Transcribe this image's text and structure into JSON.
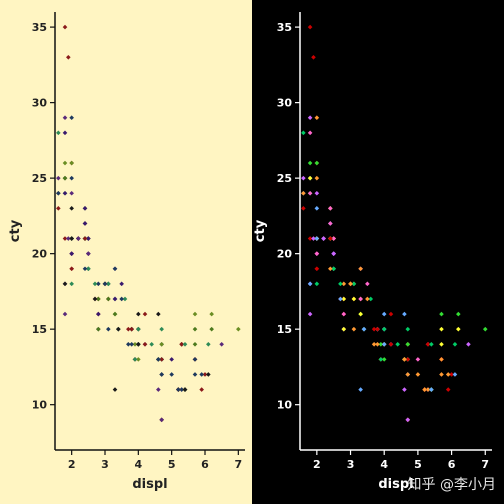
{
  "chart_data": [
    {
      "type": "scatter",
      "title": "",
      "xlabel": "displ",
      "ylabel": "cty",
      "xlim": [
        1.5,
        7.2
      ],
      "ylim": [
        7,
        36
      ],
      "xticks": [
        2,
        3,
        4,
        5,
        6,
        7
      ],
      "yticks": [
        10,
        15,
        20,
        25,
        30,
        35
      ],
      "grid": false,
      "legend": "none",
      "colors": {
        "background": "#fff5c2",
        "axis": "#111111",
        "text": "#222222",
        "points": [
          "#3a1a6e",
          "#4d7a1e",
          "#6b8e23",
          "#1f3a5f",
          "#8b1a1a",
          "#5a2a7a",
          "#1a1a1a",
          "#2e8b57"
        ]
      },
      "points": [
        [
          1.8,
          18
        ],
        [
          1.8,
          21
        ],
        [
          2.0,
          20
        ],
        [
          2.0,
          21
        ],
        [
          2.8,
          16
        ],
        [
          2.8,
          18
        ],
        [
          3.1,
          18
        ],
        [
          1.8,
          18
        ],
        [
          1.8,
          16
        ],
        [
          2.0,
          20
        ],
        [
          2.0,
          19
        ],
        [
          2.8,
          15
        ],
        [
          2.8,
          17
        ],
        [
          3.1,
          17
        ],
        [
          3.1,
          15
        ],
        [
          2.8,
          15
        ],
        [
          3.1,
          17
        ],
        [
          4.2,
          16
        ],
        [
          5.3,
          14
        ],
        [
          5.3,
          11
        ],
        [
          5.3,
          14
        ],
        [
          5.7,
          13
        ],
        [
          6.0,
          12
        ],
        [
          5.7,
          16
        ],
        [
          5.7,
          15
        ],
        [
          6.2,
          16
        ],
        [
          6.2,
          15
        ],
        [
          7.0,
          15
        ],
        [
          5.3,
          14
        ],
        [
          5.3,
          11
        ],
        [
          5.7,
          12
        ],
        [
          6.5,
          14
        ],
        [
          2.4,
          21
        ],
        [
          2.4,
          22
        ],
        [
          3.1,
          18
        ],
        [
          3.5,
          18
        ],
        [
          3.6,
          17
        ],
        [
          2.4,
          21
        ],
        [
          3.0,
          18
        ],
        [
          3.3,
          17
        ],
        [
          3.3,
          16
        ],
        [
          3.3,
          16
        ],
        [
          3.3,
          17
        ],
        [
          3.8,
          15
        ],
        [
          3.8,
          15
        ],
        [
          3.8,
          15
        ],
        [
          4.0,
          16
        ],
        [
          3.7,
          15
        ],
        [
          3.7,
          14
        ],
        [
          3.9,
          13
        ],
        [
          3.9,
          14
        ],
        [
          4.7,
          14
        ],
        [
          4.7,
          14
        ],
        [
          4.7,
          9
        ],
        [
          5.2,
          11
        ],
        [
          5.2,
          11
        ],
        [
          3.9,
          13
        ],
        [
          4.7,
          13
        ],
        [
          4.7,
          9
        ],
        [
          4.7,
          13
        ],
        [
          5.2,
          11
        ],
        [
          5.7,
          13
        ],
        [
          5.9,
          11
        ],
        [
          4.7,
          13
        ],
        [
          4.7,
          12
        ],
        [
          4.7,
          9
        ],
        [
          4.7,
          13
        ],
        [
          4.7,
          12
        ],
        [
          5.2,
          11
        ],
        [
          5.2,
          11
        ],
        [
          5.7,
          13
        ],
        [
          5.9,
          12
        ],
        [
          4.6,
          16
        ],
        [
          5.4,
          14
        ],
        [
          5.4,
          11
        ],
        [
          4.0,
          14
        ],
        [
          4.0,
          15
        ],
        [
          4.0,
          14
        ],
        [
          4.6,
          13
        ],
        [
          5.0,
          13
        ],
        [
          4.2,
          14
        ],
        [
          4.2,
          14
        ],
        [
          4.6,
          13
        ],
        [
          4.6,
          13
        ],
        [
          4.6,
          13
        ],
        [
          5.4,
          11
        ],
        [
          5.4,
          11
        ],
        [
          3.8,
          15
        ],
        [
          3.8,
          14
        ],
        [
          4.0,
          14
        ],
        [
          4.0,
          13
        ],
        [
          4.6,
          13
        ],
        [
          5.0,
          12
        ],
        [
          1.8,
          28
        ],
        [
          1.8,
          24
        ],
        [
          1.8,
          25
        ],
        [
          2.0,
          23
        ],
        [
          2.0,
          24
        ],
        [
          2.0,
          26
        ],
        [
          2.0,
          25
        ],
        [
          2.5,
          21
        ],
        [
          2.5,
          21
        ],
        [
          2.4,
          23
        ],
        [
          2.4,
          23
        ],
        [
          2.5,
          19
        ],
        [
          2.5,
          19
        ],
        [
          2.5,
          20
        ],
        [
          2.5,
          20
        ],
        [
          3.3,
          11
        ],
        [
          3.3,
          19
        ],
        [
          1.6,
          28
        ],
        [
          1.6,
          24
        ],
        [
          1.6,
          25
        ],
        [
          1.6,
          23
        ],
        [
          1.6,
          24
        ],
        [
          1.8,
          26
        ],
        [
          1.8,
          25
        ],
        [
          1.8,
          24
        ],
        [
          2.0,
          21
        ],
        [
          2.4,
          22
        ],
        [
          2.5,
          21
        ],
        [
          2.5,
          19
        ],
        [
          2.2,
          21
        ],
        [
          2.2,
          21
        ],
        [
          2.4,
          21
        ],
        [
          2.4,
          21
        ],
        [
          3.0,
          18
        ],
        [
          3.0,
          18
        ],
        [
          3.5,
          17
        ],
        [
          2.2,
          21
        ],
        [
          2.2,
          21
        ],
        [
          2.4,
          21
        ],
        [
          2.4,
          19
        ],
        [
          3.0,
          18
        ],
        [
          3.0,
          18
        ],
        [
          3.3,
          19
        ],
        [
          1.8,
          29
        ],
        [
          1.8,
          35
        ],
        [
          1.9,
          33
        ],
        [
          2.0,
          29
        ],
        [
          2.0,
          26
        ],
        [
          2.0,
          21
        ],
        [
          2.0,
          20
        ],
        [
          2.8,
          17
        ],
        [
          2.8,
          16
        ],
        [
          1.9,
          21
        ],
        [
          2.0,
          19
        ],
        [
          2.5,
          20
        ],
        [
          2.7,
          17
        ],
        [
          3.4,
          15
        ],
        [
          4.0,
          15
        ],
        [
          4.7,
          15
        ],
        [
          5.7,
          14
        ],
        [
          2.7,
          18
        ],
        [
          2.7,
          17
        ],
        [
          3.4,
          15
        ],
        [
          3.4,
          15
        ],
        [
          4.0,
          15
        ],
        [
          4.0,
          14
        ],
        [
          2.0,
          18
        ],
        [
          2.0,
          21
        ],
        [
          4.6,
          11
        ],
        [
          5.4,
          11
        ],
        [
          6.1,
          14
        ],
        [
          6.1,
          12
        ],
        [
          3.9,
          13
        ],
        [
          4.4,
          14
        ]
      ]
    },
    {
      "type": "scatter",
      "title": "",
      "xlabel": "displ",
      "ylabel": "cty",
      "xlim": [
        1.5,
        7.2
      ],
      "ylim": [
        7,
        36
      ],
      "xticks": [
        2,
        3,
        4,
        5,
        6,
        7
      ],
      "yticks": [
        10,
        15,
        20,
        25,
        30,
        35
      ],
      "grid": false,
      "legend": "none",
      "colors": {
        "background": "#000000",
        "axis": "#ffffff",
        "text": "#ffffff",
        "points": [
          "#ff66cc",
          "#ffff33",
          "#33dd33",
          "#ff9933",
          "#cc0000",
          "#cc66ff",
          "#66aaff",
          "#00cc66"
        ]
      },
      "points": [
        [
          1.8,
          18
        ],
        [
          1.8,
          21
        ],
        [
          2.0,
          20
        ],
        [
          2.0,
          21
        ],
        [
          2.8,
          16
        ],
        [
          2.8,
          18
        ],
        [
          3.1,
          18
        ],
        [
          1.8,
          18
        ],
        [
          1.8,
          16
        ],
        [
          2.0,
          20
        ],
        [
          2.0,
          19
        ],
        [
          2.8,
          15
        ],
        [
          2.8,
          17
        ],
        [
          3.1,
          17
        ],
        [
          3.1,
          15
        ],
        [
          2.8,
          15
        ],
        [
          3.1,
          17
        ],
        [
          4.2,
          16
        ],
        [
          5.3,
          14
        ],
        [
          5.3,
          11
        ],
        [
          5.3,
          14
        ],
        [
          5.7,
          13
        ],
        [
          6.0,
          12
        ],
        [
          5.7,
          16
        ],
        [
          5.7,
          15
        ],
        [
          6.2,
          16
        ],
        [
          6.2,
          15
        ],
        [
          7.0,
          15
        ],
        [
          5.3,
          14
        ],
        [
          5.3,
          11
        ],
        [
          5.7,
          12
        ],
        [
          6.5,
          14
        ],
        [
          2.4,
          21
        ],
        [
          2.4,
          22
        ],
        [
          3.1,
          18
        ],
        [
          3.5,
          18
        ],
        [
          3.6,
          17
        ],
        [
          2.4,
          21
        ],
        [
          3.0,
          18
        ],
        [
          3.3,
          17
        ],
        [
          3.3,
          16
        ],
        [
          3.3,
          16
        ],
        [
          3.3,
          17
        ],
        [
          3.8,
          15
        ],
        [
          3.8,
          15
        ],
        [
          3.8,
          15
        ],
        [
          4.0,
          16
        ],
        [
          3.7,
          15
        ],
        [
          3.7,
          14
        ],
        [
          3.9,
          13
        ],
        [
          3.9,
          14
        ],
        [
          4.7,
          14
        ],
        [
          4.7,
          14
        ],
        [
          4.7,
          9
        ],
        [
          5.2,
          11
        ],
        [
          5.2,
          11
        ],
        [
          3.9,
          13
        ],
        [
          4.7,
          13
        ],
        [
          4.7,
          9
        ],
        [
          4.7,
          13
        ],
        [
          5.2,
          11
        ],
        [
          5.7,
          13
        ],
        [
          5.9,
          11
        ],
        [
          4.7,
          13
        ],
        [
          4.7,
          12
        ],
        [
          4.7,
          9
        ],
        [
          4.7,
          13
        ],
        [
          4.7,
          12
        ],
        [
          5.2,
          11
        ],
        [
          5.2,
          11
        ],
        [
          5.7,
          13
        ],
        [
          5.9,
          12
        ],
        [
          4.6,
          16
        ],
        [
          5.4,
          14
        ],
        [
          5.4,
          11
        ],
        [
          4.0,
          14
        ],
        [
          4.0,
          15
        ],
        [
          4.0,
          14
        ],
        [
          4.6,
          13
        ],
        [
          5.0,
          13
        ],
        [
          4.2,
          14
        ],
        [
          4.2,
          14
        ],
        [
          4.6,
          13
        ],
        [
          4.6,
          13
        ],
        [
          4.6,
          13
        ],
        [
          5.4,
          11
        ],
        [
          5.4,
          11
        ],
        [
          3.8,
          15
        ],
        [
          3.8,
          14
        ],
        [
          4.0,
          14
        ],
        [
          4.0,
          13
        ],
        [
          4.6,
          13
        ],
        [
          5.0,
          12
        ],
        [
          1.8,
          28
        ],
        [
          1.8,
          24
        ],
        [
          1.8,
          25
        ],
        [
          2.0,
          23
        ],
        [
          2.0,
          24
        ],
        [
          2.0,
          26
        ],
        [
          2.0,
          25
        ],
        [
          2.5,
          21
        ],
        [
          2.5,
          21
        ],
        [
          2.4,
          23
        ],
        [
          2.4,
          23
        ],
        [
          2.5,
          19
        ],
        [
          2.5,
          19
        ],
        [
          2.5,
          20
        ],
        [
          2.5,
          20
        ],
        [
          3.3,
          11
        ],
        [
          3.3,
          19
        ],
        [
          1.6,
          28
        ],
        [
          1.6,
          24
        ],
        [
          1.6,
          25
        ],
        [
          1.6,
          23
        ],
        [
          1.6,
          24
        ],
        [
          1.8,
          26
        ],
        [
          1.8,
          25
        ],
        [
          1.8,
          24
        ],
        [
          2.0,
          21
        ],
        [
          2.4,
          22
        ],
        [
          2.5,
          21
        ],
        [
          2.5,
          19
        ],
        [
          2.2,
          21
        ],
        [
          2.2,
          21
        ],
        [
          2.4,
          21
        ],
        [
          2.4,
          21
        ],
        [
          3.0,
          18
        ],
        [
          3.0,
          18
        ],
        [
          3.5,
          17
        ],
        [
          2.2,
          21
        ],
        [
          2.2,
          21
        ],
        [
          2.4,
          21
        ],
        [
          2.4,
          19
        ],
        [
          3.0,
          18
        ],
        [
          3.0,
          18
        ],
        [
          3.3,
          19
        ],
        [
          1.8,
          29
        ],
        [
          1.8,
          35
        ],
        [
          1.9,
          33
        ],
        [
          2.0,
          29
        ],
        [
          2.0,
          26
        ],
        [
          2.0,
          21
        ],
        [
          2.0,
          20
        ],
        [
          2.8,
          17
        ],
        [
          2.8,
          16
        ],
        [
          1.9,
          21
        ],
        [
          2.0,
          19
        ],
        [
          2.5,
          20
        ],
        [
          2.7,
          17
        ],
        [
          3.4,
          15
        ],
        [
          4.0,
          15
        ],
        [
          4.7,
          15
        ],
        [
          5.7,
          14
        ],
        [
          2.7,
          18
        ],
        [
          2.7,
          17
        ],
        [
          3.4,
          15
        ],
        [
          3.4,
          15
        ],
        [
          4.0,
          15
        ],
        [
          4.0,
          14
        ],
        [
          2.0,
          18
        ],
        [
          2.0,
          21
        ],
        [
          4.6,
          11
        ],
        [
          5.4,
          11
        ],
        [
          6.1,
          14
        ],
        [
          6.1,
          12
        ],
        [
          3.9,
          13
        ],
        [
          4.4,
          14
        ]
      ]
    }
  ],
  "watermark": "知乎 @李小月"
}
